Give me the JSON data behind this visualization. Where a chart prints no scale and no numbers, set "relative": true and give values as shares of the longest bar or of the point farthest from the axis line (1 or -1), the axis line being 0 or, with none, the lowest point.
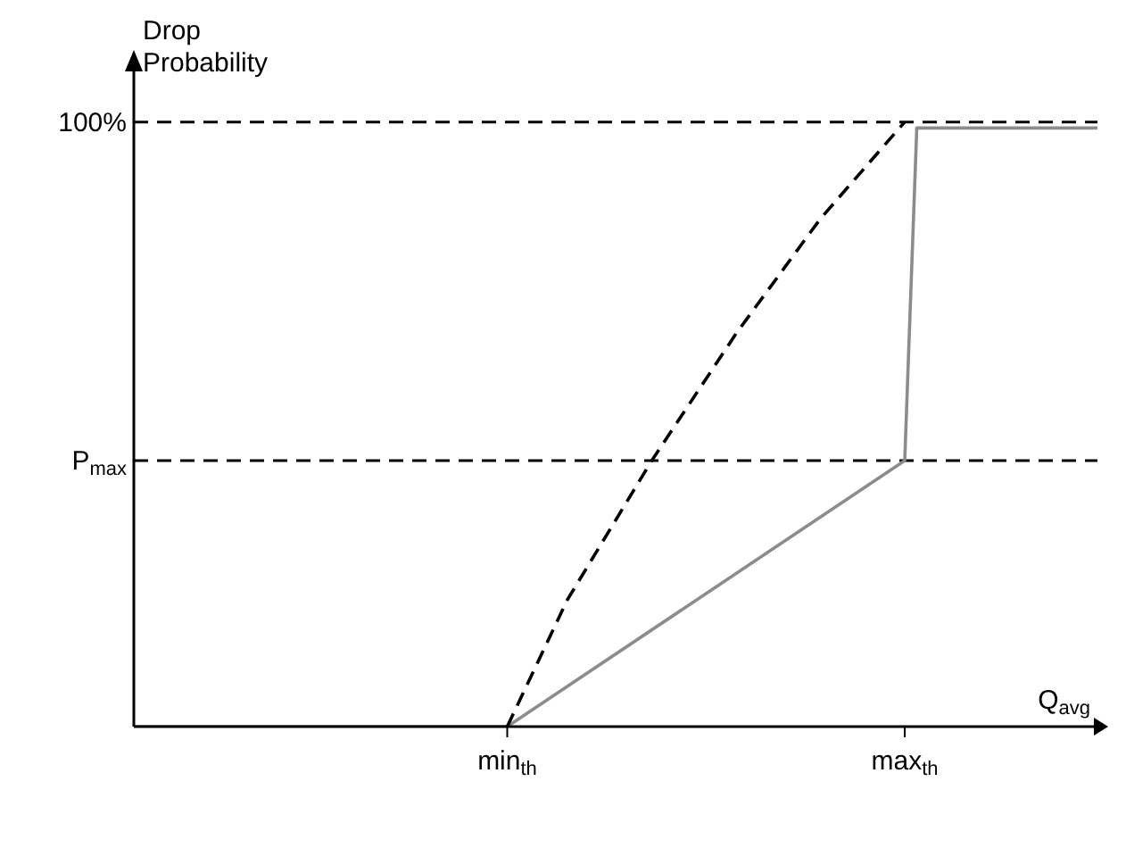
{
  "chart_data": {
    "type": "line",
    "xlabel": "Q$_{avg}$",
    "ylabel": "Drop Probability",
    "categories": [
      null,
      null,
      null,
      null,
      null,
      null,
      null,
      null,
      null,
      null,
      null,
      null,
      null,
      null,
      null,
      null,
      null,
      null,
      null,
      null,
      null,
      null,
      null,
      null,
      null,
      null,
      null,
      null,
      null,
      null,
      null,
      "min$_{th}$",
      null,
      null,
      null,
      null,
      null,
      null,
      null,
      null,
      null,
      null,
      null,
      null,
      null,
      null,
      null,
      null,
      null,
      null,
      null,
      null,
      null,
      null,
      null,
      null,
      null,
      null,
      null,
      null,
      null,
      null,
      null,
      null,
      "max$_{th}$",
      null,
      null,
      null,
      null,
      null,
      null,
      null,
      null,
      null,
      null,
      null,
      null,
      null,
      null,
      null,
      null
    ],
    "relative": true,
    "series": [
      {
        "color": "#8c8c8c",
        "line_style": "solid",
        "values": [
          0,
          null,
          null,
          null,
          null,
          null,
          null,
          null,
          null,
          null,
          null,
          null,
          null,
          null,
          null,
          null,
          null,
          null,
          null,
          null,
          null,
          null,
          null,
          null,
          null,
          null,
          null,
          null,
          null,
          null,
          null,
          0,
          null,
          null,
          null,
          null,
          null,
          null,
          null,
          null,
          null,
          null,
          null,
          null,
          null,
          null,
          null,
          null,
          null,
          null,
          null,
          null,
          null,
          null,
          null,
          null,
          null,
          null,
          null,
          null,
          null,
          null,
          null,
          null,
          0.44,
          0.99,
          null,
          null,
          null,
          null,
          null,
          null,
          null,
          null,
          null,
          null,
          null,
          null,
          null,
          null,
          0.99
        ]
      },
      {
        "color": "#000000",
        "line_style": "dashed",
        "values": [
          null,
          null,
          null,
          null,
          null,
          null,
          null,
          null,
          null,
          null,
          null,
          null,
          null,
          null,
          null,
          null,
          null,
          null,
          null,
          null,
          null,
          null,
          null,
          null,
          null,
          null,
          null,
          null,
          null,
          null,
          null,
          0,
          null,
          null,
          null,
          null,
          0.21,
          null,
          null,
          null,
          null,
          null,
          null,
          0.44,
          null,
          null,
          null,
          null,
          null,
          null,
          0.65,
          null,
          null,
          null,
          null,
          null,
          null,
          0.84,
          null,
          null,
          null,
          null,
          null,
          null,
          1,
          null,
          null,
          null,
          null,
          null,
          null,
          null,
          null,
          null,
          null,
          null,
          null,
          null,
          null,
          null,
          null
        ]
      }
    ],
    "ref_lines": [
      {
        "axis": "y",
        "value": 1,
        "label": "100%",
        "color": "#000000",
        "line_style": "dashed"
      },
      {
        "axis": "y",
        "value": 0.44,
        "label": "P$_{max}$",
        "color": "#000000",
        "line_style": "dashed"
      }
    ],
    "grid": false,
    "legend": false,
    "marker": "none"
  }
}
